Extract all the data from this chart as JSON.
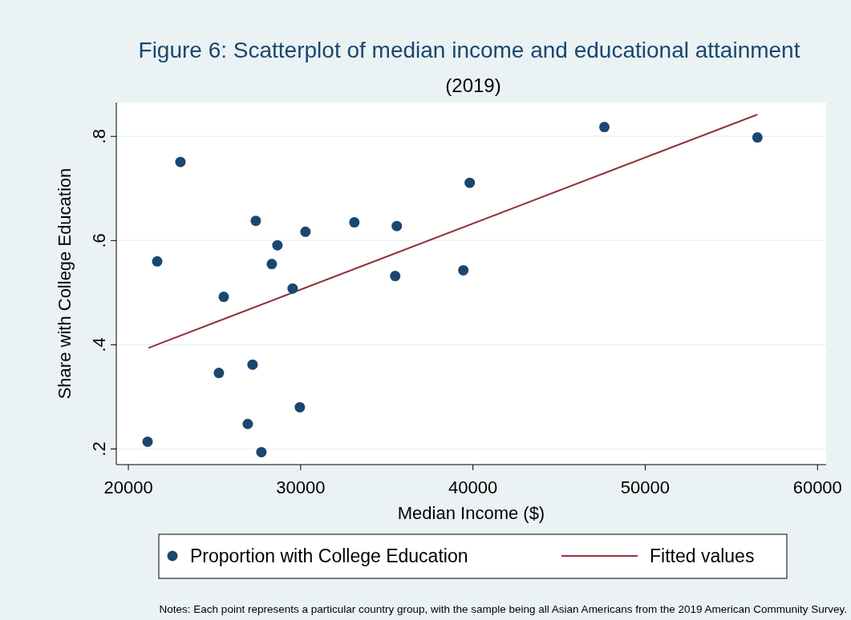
{
  "chart_data": {
    "type": "scatter",
    "title": "Figure 6: Scatterplot of median income and educational attainment",
    "subtitle": "(2019)",
    "xlabel": "Median Income ($)",
    "ylabel": "Share with College Education",
    "xlim": [
      19300,
      60500
    ],
    "ylim": [
      0.17,
      0.865
    ],
    "xticks": [
      20000,
      30000,
      40000,
      50000,
      60000
    ],
    "yticks": [
      {
        "value": 0.2,
        "label": ".2"
      },
      {
        "value": 0.4,
        "label": ".4"
      },
      {
        "value": 0.6,
        "label": ".6"
      },
      {
        "value": 0.8,
        "label": ".8"
      }
    ],
    "grid": "y",
    "legend": "bottom",
    "marker": "circle",
    "series": [
      {
        "name": "Proportion with College Education",
        "color": "#1a476f",
        "x": [
          21116,
          21674,
          23023,
          25256,
          25535,
          26930,
          27209,
          27395,
          27721,
          28326,
          28651,
          29535,
          29953,
          30279,
          33116,
          35488,
          35581,
          39442,
          39814,
          47628,
          56512
        ],
        "values": [
          0.214,
          0.56,
          0.751,
          0.346,
          0.492,
          0.248,
          0.362,
          0.638,
          0.194,
          0.555,
          0.591,
          0.508,
          0.28,
          0.617,
          0.635,
          0.532,
          0.628,
          0.543,
          0.711,
          0.818,
          0.798
        ]
      },
      {
        "name": "Fitted values",
        "type": "line",
        "marker": "none",
        "color": "#90353b",
        "x": [
          21163,
          56512
        ],
        "values": [
          0.394,
          0.842
        ]
      }
    ],
    "annotations": [
      "Notes: Each point represents a particular country group, with the sample being all Asian Americans from the 2019 American Community Survey."
    ]
  }
}
